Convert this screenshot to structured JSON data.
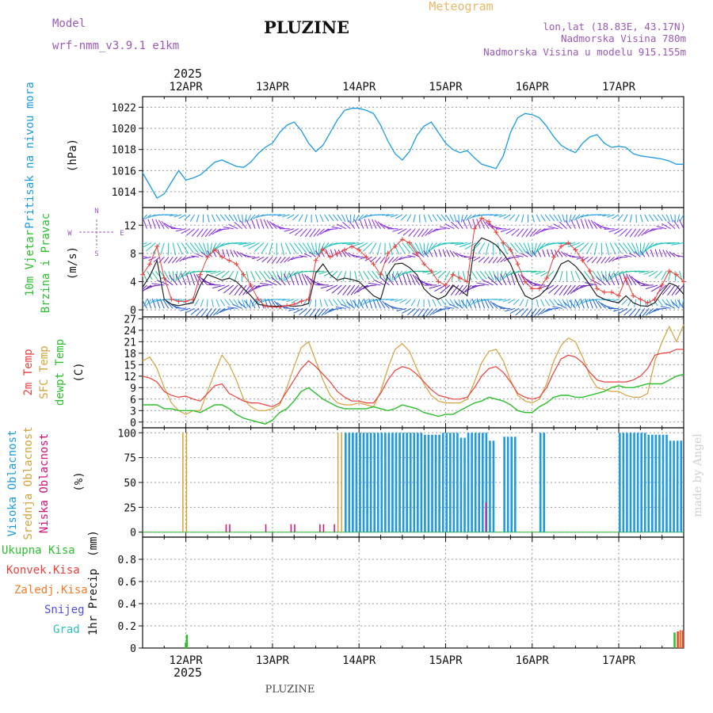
{
  "header": {
    "model_label": "Model",
    "model_name": "wrf-nmm_v3.9.1 e1km",
    "station": "PLUZINE",
    "product": "Meteogram",
    "coords": "lon,lat (18.83E, 43.17N)",
    "elevation": "Nadmorska Visina 780m",
    "model_elevation": "Nadmorska Visina u modelu 915.155m"
  },
  "footer": {
    "station": "PLUZINE",
    "credit": "made by Angel"
  },
  "time_axis": {
    "year": "2025",
    "days": [
      "12APR",
      "13APR",
      "14APR",
      "15APR",
      "16APR",
      "17APR"
    ],
    "range_hours": [
      0,
      150
    ],
    "day_hours": [
      12,
      36,
      60,
      84,
      108,
      132
    ]
  },
  "colors": {
    "pressure": "#1e9be0",
    "temp2m": "#e8413c",
    "sfc": "#d4a23c",
    "dewpt": "#2dbe2d",
    "high_cloud": "#1e9be0",
    "mid_cloud": "#d4a23c",
    "low_cloud": "#d0107a",
    "total_precip": "#2dbe2d",
    "conv_precip": "#e8413c",
    "frozen_precip": "#f07c2a",
    "snow": "#5050e0",
    "grad": "#30c0c0",
    "barb_speed": "#222222",
    "gust": "#e8413c"
  },
  "chart_data": [
    {
      "id": "pressure",
      "type": "line",
      "ylabel_main": "Pritisak na nivou mora",
      "unit": "(hPa)",
      "ylim": [
        1012.5,
        1023
      ],
      "yticks": [
        1014,
        1016,
        1018,
        1020,
        1022
      ],
      "series": [
        {
          "x": [
            0,
            2,
            4,
            6,
            8,
            10,
            12,
            14,
            16,
            18,
            20,
            22,
            24,
            26,
            28,
            30,
            32,
            34,
            36,
            38,
            40,
            42,
            44,
            46,
            48,
            50,
            52,
            54,
            56,
            58,
            60,
            62,
            64,
            66,
            68,
            70,
            72,
            74,
            76,
            78,
            80,
            82,
            84,
            86,
            88,
            90,
            92,
            94,
            96,
            98,
            100,
            102,
            104,
            106,
            108,
            110,
            112,
            114,
            116,
            118,
            120,
            122,
            124,
            126,
            128,
            130,
            132,
            134,
            136,
            138,
            140,
            142,
            144,
            146,
            148,
            150
          ],
          "y": [
            1015.8,
            1014.6,
            1013.4,
            1013.8,
            1014.9,
            1016.0,
            1015.1,
            1015.3,
            1015.6,
            1016.2,
            1016.8,
            1017.0,
            1016.7,
            1016.4,
            1016.3,
            1016.8,
            1017.6,
            1018.2,
            1018.6,
            1019.6,
            1020.3,
            1020.6,
            1019.8,
            1018.6,
            1017.8,
            1018.4,
            1019.6,
            1020.8,
            1021.7,
            1021.9,
            1021.9,
            1021.7,
            1021.4,
            1020.3,
            1018.8,
            1017.6,
            1017.0,
            1017.8,
            1019.3,
            1020.2,
            1020.6,
            1019.6,
            1018.6,
            1018.0,
            1017.7,
            1017.9,
            1017.2,
            1016.6,
            1016.4,
            1016.2,
            1017.4,
            1019.6,
            1021.0,
            1021.4,
            1021.3,
            1021.0,
            1020.2,
            1019.2,
            1018.4,
            1018.0,
            1017.7,
            1018.6,
            1019.2,
            1019.4,
            1018.6,
            1018.2,
            1018.3,
            1018.2,
            1017.6,
            1017.4,
            1017.3,
            1017.2,
            1017.1,
            1016.9,
            1016.6,
            1016.6
          ]
        }
      ]
    },
    {
      "id": "wind",
      "type": "line",
      "ylabel_main": "10m Vjetar",
      "ylabel_sub": "Brzina i Pravac",
      "unit": "(m/s)",
      "compass": {
        "n": "N",
        "s": "S",
        "e": "E",
        "w": "W"
      },
      "ylim": [
        -1,
        14.5
      ],
      "yticks": [
        0,
        4,
        8,
        12
      ],
      "series": [
        {
          "name": "speed",
          "x": [
            0,
            2,
            4,
            6,
            8,
            10,
            12,
            14,
            16,
            18,
            20,
            22,
            24,
            26,
            28,
            30,
            32,
            34,
            36,
            38,
            40,
            42,
            44,
            46,
            48,
            50,
            52,
            54,
            56,
            58,
            60,
            62,
            64,
            66,
            68,
            70,
            72,
            74,
            76,
            78,
            80,
            82,
            84,
            86,
            88,
            90,
            92,
            94,
            96,
            98,
            100,
            102,
            104,
            106,
            108,
            110,
            112,
            114,
            116,
            118,
            120,
            122,
            124,
            126,
            128,
            130,
            132,
            134,
            136,
            138,
            140,
            142,
            144,
            146,
            148,
            150
          ],
          "y": [
            3.2,
            4.8,
            7.0,
            1.5,
            0.8,
            0.6,
            0.8,
            1.0,
            3.5,
            5.0,
            4.6,
            4.2,
            4.5,
            4.0,
            3.0,
            2.0,
            0.8,
            0.6,
            0.5,
            0.5,
            0.6,
            0.5,
            0.6,
            0.9,
            5.2,
            6.5,
            5.0,
            4.2,
            4.5,
            4.3,
            4.0,
            3.0,
            2.0,
            1.5,
            5.0,
            6.5,
            6.6,
            6.0,
            5.0,
            3.0,
            2.0,
            1.5,
            2.0,
            3.5,
            2.8,
            2.0,
            9.0,
            10.2,
            9.8,
            9.2,
            8.0,
            6.5,
            4.0,
            2.0,
            1.5,
            2.0,
            3.0,
            4.5,
            6.5,
            7.0,
            6.2,
            5.0,
            3.5,
            2.0,
            1.5,
            1.2,
            1.0,
            2.0,
            1.0,
            0.6,
            0.5,
            1.0,
            2.5,
            3.8,
            3.4,
            2.2
          ]
        },
        {
          "name": "gust",
          "x": [
            0,
            2,
            4,
            6,
            8,
            10,
            12,
            14,
            16,
            18,
            20,
            22,
            24,
            26,
            28,
            30,
            32,
            34,
            36,
            38,
            40,
            42,
            44,
            46,
            48,
            50,
            52,
            54,
            56,
            58,
            60,
            62,
            64,
            66,
            68,
            70,
            72,
            74,
            76,
            78,
            80,
            82,
            84,
            86,
            88,
            90,
            92,
            94,
            96,
            98,
            100,
            102,
            104,
            106,
            108,
            110,
            112,
            114,
            116,
            118,
            120,
            122,
            124,
            126,
            128,
            130,
            132,
            134,
            136,
            138,
            140,
            142,
            144,
            146,
            148,
            150
          ],
          "y": [
            5.0,
            6.5,
            9.0,
            4.5,
            1.5,
            1.2,
            1.2,
            1.5,
            5.0,
            7.5,
            8.5,
            7.5,
            7.0,
            6.5,
            5.0,
            3.5,
            1.5,
            0.5,
            0.4,
            0.4,
            0.6,
            0.8,
            1.2,
            1.5,
            7.0,
            8.6,
            7.5,
            8.0,
            8.5,
            9.0,
            8.5,
            7.5,
            6.5,
            5.0,
            8.0,
            9.0,
            10.0,
            9.5,
            8.0,
            6.5,
            5.5,
            4.0,
            3.5,
            5.0,
            4.5,
            4.0,
            11.5,
            13.0,
            12.5,
            11.0,
            9.5,
            8.5,
            6.5,
            4.0,
            3.0,
            3.0,
            4.5,
            7.5,
            9.0,
            9.5,
            8.5,
            7.0,
            5.5,
            3.0,
            2.5,
            2.5,
            2.0,
            4.5,
            2.0,
            1.5,
            1.0,
            1.5,
            3.5,
            5.5,
            5.0,
            4.0
          ]
        }
      ]
    },
    {
      "id": "temperature",
      "type": "line",
      "ylabel_a": "2m Temp",
      "ylabel_b": "SFC Temp",
      "ylabel_c": "dewpt Temp",
      "unit": "(C)",
      "ylim": [
        -1.5,
        27.5
      ],
      "yticks": [
        0,
        3,
        6,
        9,
        12,
        15,
        18,
        21,
        24,
        27
      ],
      "x": [
        0,
        2,
        4,
        6,
        8,
        10,
        12,
        14,
        16,
        18,
        20,
        22,
        24,
        26,
        28,
        30,
        32,
        34,
        36,
        38,
        40,
        42,
        44,
        46,
        48,
        50,
        52,
        54,
        56,
        58,
        60,
        62,
        64,
        66,
        68,
        70,
        72,
        74,
        76,
        78,
        80,
        82,
        84,
        86,
        88,
        90,
        92,
        94,
        96,
        98,
        100,
        102,
        104,
        106,
        108,
        110,
        112,
        114,
        116,
        118,
        120,
        122,
        124,
        126,
        128,
        130,
        132,
        134,
        136,
        138,
        140,
        142,
        144,
        146,
        148,
        150
      ],
      "series": [
        {
          "name": "2m Temp",
          "y": [
            12,
            11.5,
            10.5,
            8,
            7,
            6.5,
            6.8,
            6,
            5.5,
            7.5,
            9.5,
            10,
            7.5,
            6.5,
            5.5,
            5,
            5,
            4.5,
            4,
            5,
            8,
            11,
            14,
            16,
            14.5,
            12.5,
            10.5,
            8,
            6.5,
            5.5,
            5.5,
            5,
            5,
            7.5,
            11,
            13.5,
            14.5,
            14,
            12.5,
            10.5,
            8.5,
            7,
            6.5,
            6,
            6,
            6.5,
            9,
            12,
            14,
            14.5,
            13,
            10.5,
            7.5,
            6.5,
            6,
            6.5,
            9,
            13,
            16.5,
            17.5,
            17,
            15.5,
            13,
            11,
            10.5,
            10.5,
            10.5,
            10.5,
            11,
            12,
            14,
            17.5,
            18,
            18.2,
            19,
            19
          ]
        },
        {
          "name": "SFC Temp",
          "y": [
            16,
            17,
            14,
            9,
            5,
            3,
            2,
            3,
            3,
            8,
            13,
            17.5,
            15,
            11,
            6,
            4,
            3,
            3,
            3.5,
            4.5,
            9,
            14.5,
            19.5,
            21,
            16,
            11,
            7,
            5,
            4.5,
            4.5,
            5,
            4.5,
            4,
            8,
            14,
            19,
            20.5,
            18.5,
            14,
            10,
            7,
            5.5,
            5,
            5,
            5,
            6,
            10.5,
            15.5,
            18.5,
            19,
            16,
            11,
            7,
            5.5,
            5,
            6,
            10,
            16,
            20,
            22,
            21,
            17,
            12,
            9,
            8.5,
            8,
            8,
            7,
            6.5,
            6.5,
            7.5,
            16,
            21,
            25,
            21,
            25.5
          ]
        },
        {
          "name": "dewpt Temp",
          "y": [
            4.5,
            4.5,
            4.5,
            3.5,
            3.5,
            3,
            3,
            3,
            2.5,
            3.5,
            4.5,
            4.5,
            3.5,
            2,
            1,
            0.5,
            0,
            -0.5,
            0.5,
            2.5,
            3.5,
            5.5,
            8,
            9,
            7.5,
            6,
            5,
            4,
            3.5,
            3.5,
            3.5,
            3.5,
            4,
            3.5,
            3,
            3.5,
            4.5,
            4,
            3.5,
            2.5,
            2,
            1.5,
            2,
            2,
            3,
            4,
            5,
            5.5,
            6.5,
            6,
            5.5,
            4.5,
            3,
            2.5,
            2.5,
            4,
            5,
            6.5,
            7,
            7,
            6.5,
            6.5,
            7,
            7.5,
            8,
            9,
            9.5,
            9,
            9,
            9.5,
            10,
            10,
            10,
            11,
            12,
            12.5
          ]
        }
      ]
    },
    {
      "id": "cloud",
      "type": "bar",
      "ylabel_a": "Visoka Oblacnost",
      "ylabel_b": "Srednja Oblacnost",
      "ylabel_c": "Niska Oblacnost",
      "unit": "(%)",
      "ylim": [
        -5,
        105
      ],
      "yticks": [
        0,
        25,
        50,
        75,
        100
      ],
      "high": [
        [
          56,
          60,
          100
        ],
        [
          60,
          66,
          100
        ],
        [
          66,
          72,
          100
        ],
        [
          72,
          78,
          100
        ],
        [
          78,
          83,
          98
        ],
        [
          83,
          88,
          100
        ],
        [
          88,
          90,
          95
        ],
        [
          90,
          96,
          100
        ],
        [
          96,
          98,
          92
        ],
        [
          100,
          104,
          96
        ],
        [
          110,
          112,
          100
        ],
        [
          132,
          140,
          100
        ],
        [
          140,
          146,
          98
        ],
        [
          146,
          150,
          92
        ]
      ],
      "mid": [
        [
          11,
          13,
          100
        ],
        [
          54,
          58,
          100
        ],
        [
          58,
          64,
          100
        ],
        [
          64,
          70,
          100
        ],
        [
          70,
          78,
          100
        ],
        [
          78,
          82,
          98
        ],
        [
          82,
          88,
          96
        ],
        [
          88,
          92,
          50
        ],
        [
          92,
          94,
          40
        ],
        [
          142,
          146,
          35
        ],
        [
          146,
          150,
          55
        ]
      ],
      "low": [
        [
          23,
          24,
          8
        ],
        [
          24,
          25,
          8
        ],
        [
          34,
          35,
          8
        ],
        [
          41,
          42,
          8
        ],
        [
          42,
          43,
          8
        ],
        [
          49,
          50,
          8
        ],
        [
          50,
          51,
          8
        ],
        [
          53,
          54,
          8
        ],
        [
          95,
          96,
          30
        ]
      ]
    },
    {
      "id": "precip",
      "type": "bar",
      "ylabel_main": "1hr Precip",
      "unit": "(mm)",
      "ylim": [
        0,
        1.0
      ],
      "yticks": [
        0,
        0.2,
        0.4,
        0.6,
        0.8
      ],
      "legend": [
        "Ukupna Kisa",
        "Konvek.Kisa",
        "Zaledj.Kisa",
        "Snijeg",
        "Grad"
      ],
      "total": [
        [
          11.7,
          0.05
        ],
        [
          12.0,
          0.12
        ],
        [
          147.2,
          0.14
        ],
        [
          148.8,
          0.16
        ]
      ],
      "conv": [
        [
          148.1,
          0.15
        ],
        [
          149.5,
          0.16
        ]
      ],
      "frozen": [
        [
          148.8,
          0.16
        ]
      ]
    }
  ]
}
